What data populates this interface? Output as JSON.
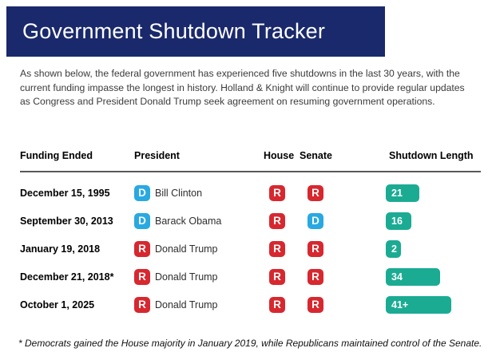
{
  "banner": {
    "title": "Government Shutdown Tracker"
  },
  "intro": {
    "text": "As shown below, the federal government has experienced five shutdowns in the last 30 years, with the current funding impasse the longest in history. Holland & Knight will continue to provide regular updates as Congress and President Donald Trump seek agreement on resuming government operations."
  },
  "table": {
    "columns": [
      "Funding Ended",
      "President",
      "House",
      "Senate",
      "Shutdown Length"
    ],
    "rows": [
      {
        "funding_ended": "December 15, 1995",
        "president_party": "D",
        "president": "Bill Clinton",
        "house": "R",
        "senate": "R",
        "length_label": "21",
        "length_days": 21
      },
      {
        "funding_ended": "September 30, 2013",
        "president_party": "D",
        "president": "Barack Obama",
        "house": "R",
        "senate": "D",
        "length_label": "16",
        "length_days": 16
      },
      {
        "funding_ended": "January 19, 2018",
        "president_party": "R",
        "president": "Donald Trump",
        "house": "R",
        "senate": "R",
        "length_label": "2",
        "length_days": 2
      },
      {
        "funding_ended": "December 21, 2018*",
        "president_party": "R",
        "president": "Donald Trump",
        "house": "R",
        "senate": "R",
        "length_label": "34",
        "length_days": 34
      },
      {
        "funding_ended": "October 1, 2025",
        "president_party": "R",
        "president": "Donald Trump",
        "house": "R",
        "senate": "R",
        "length_label": "41+",
        "length_days": 41
      }
    ]
  },
  "footnote": {
    "text": "* Democrats gained the House majority in January 2019, while Republicans maintained control of the Senate."
  },
  "colors": {
    "banner_navy": "#1a296b",
    "democrat_blue": "#29a9e1",
    "republican_red": "#d7282f",
    "bar_teal": "#1bab93",
    "divider_gray": "#58595b"
  },
  "chart_data": {
    "type": "bar",
    "orientation": "horizontal",
    "title": "Government Shutdown Tracker",
    "categories": [
      "December 15, 1995",
      "September 30, 2013",
      "January 19, 2018",
      "December 21, 2018*",
      "October 1, 2025"
    ],
    "values": [
      21,
      16,
      2,
      34,
      41
    ],
    "value_labels": [
      "21",
      "16",
      "2",
      "34",
      "41+"
    ],
    "series_name": "Shutdown Length (days)",
    "annotations": {
      "presidents": [
        "Bill Clinton (D)",
        "Barack Obama (D)",
        "Donald Trump (R)",
        "Donald Trump (R)",
        "Donald Trump (R)"
      ],
      "house_control": [
        "R",
        "R",
        "R",
        "R",
        "R"
      ],
      "senate_control": [
        "R",
        "D",
        "R",
        "R",
        "R"
      ]
    },
    "legend_position": "none",
    "grid": false
  }
}
